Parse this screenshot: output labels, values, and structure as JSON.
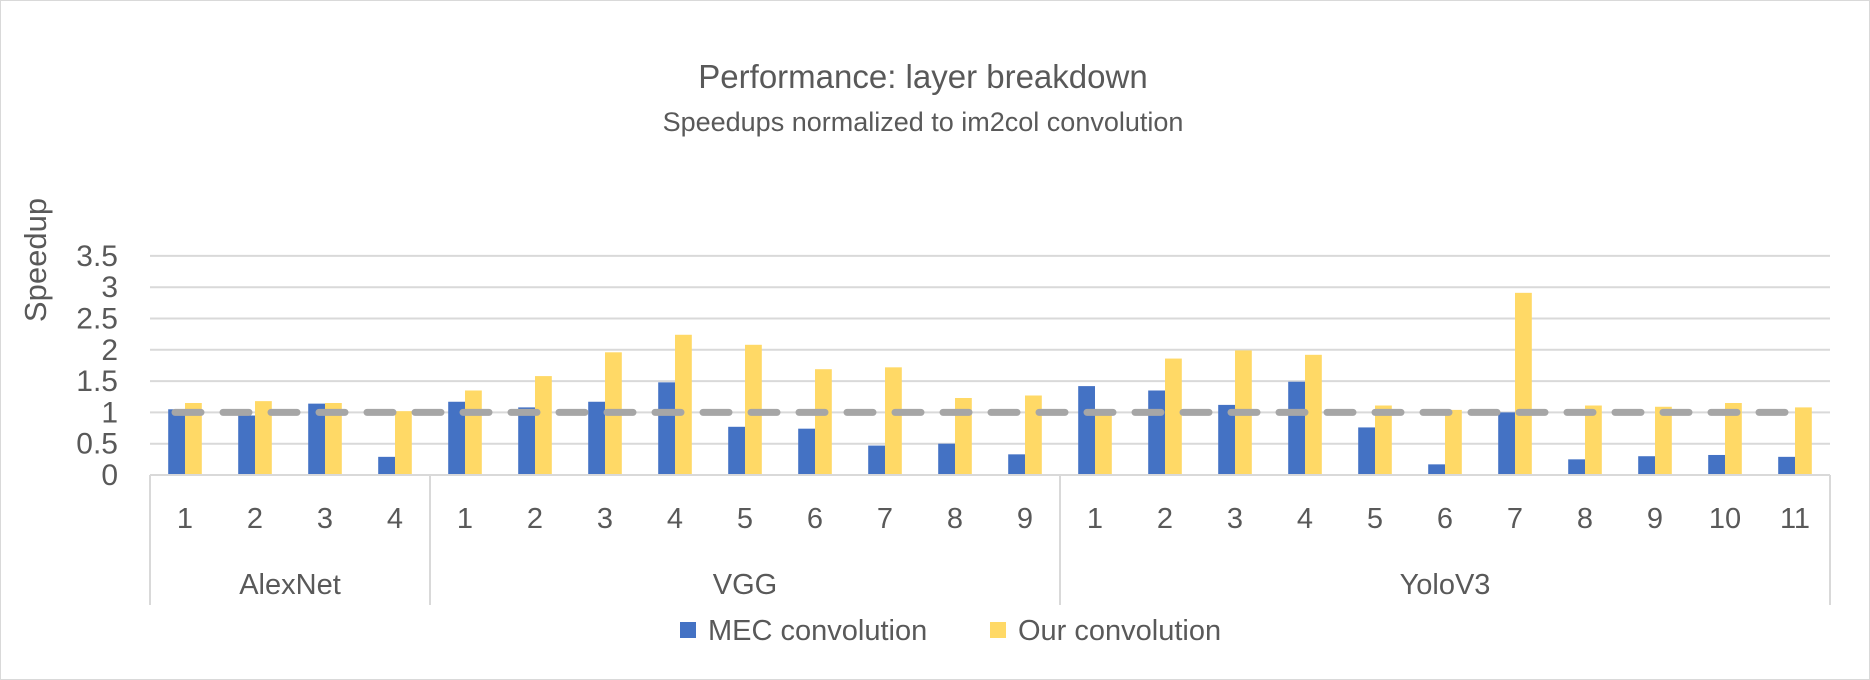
{
  "chart_data": {
    "type": "bar",
    "title": "Performance: layer breakdown",
    "subtitle": "Speedups normalized to im2col convolution",
    "xlabel": "",
    "ylabel": "Speedup",
    "ylim": [
      0,
      3.5
    ],
    "yticks": [
      "0",
      "0.5",
      "1",
      "1.5",
      "2",
      "2.5",
      "3",
      "3.5"
    ],
    "grid": true,
    "legend_position": "bottom",
    "groups": [
      {
        "name": "AlexNet",
        "categories": [
          "1",
          "2",
          "3",
          "4"
        ]
      },
      {
        "name": "VGG",
        "categories": [
          "1",
          "2",
          "3",
          "4",
          "5",
          "6",
          "7",
          "8",
          "9"
        ]
      },
      {
        "name": "YoloV3",
        "categories": [
          "1",
          "2",
          "3",
          "4",
          "5",
          "6",
          "7",
          "8",
          "9",
          "10",
          "11"
        ]
      }
    ],
    "series": [
      {
        "name": "MEC convolution",
        "color": "#4472c4",
        "values": [
          1.05,
          0.95,
          1.14,
          0.29,
          1.17,
          1.08,
          1.17,
          1.48,
          0.77,
          0.74,
          0.47,
          0.5,
          0.33,
          1.42,
          1.35,
          1.12,
          1.49,
          0.76,
          0.17,
          1.0,
          0.25,
          0.3,
          0.32,
          0.29
        ]
      },
      {
        "name": "Our convolution",
        "color": "#ffd966",
        "values": [
          1.15,
          1.18,
          1.15,
          1.02,
          1.35,
          1.58,
          1.96,
          2.24,
          2.08,
          1.69,
          1.72,
          1.23,
          1.27,
          1.02,
          1.86,
          1.99,
          1.92,
          1.11,
          1.04,
          2.91,
          1.11,
          1.09,
          1.15,
          1.08
        ]
      }
    ],
    "reference_line": {
      "value": 1,
      "color": "#a6a6a6",
      "style": "dashed"
    }
  }
}
